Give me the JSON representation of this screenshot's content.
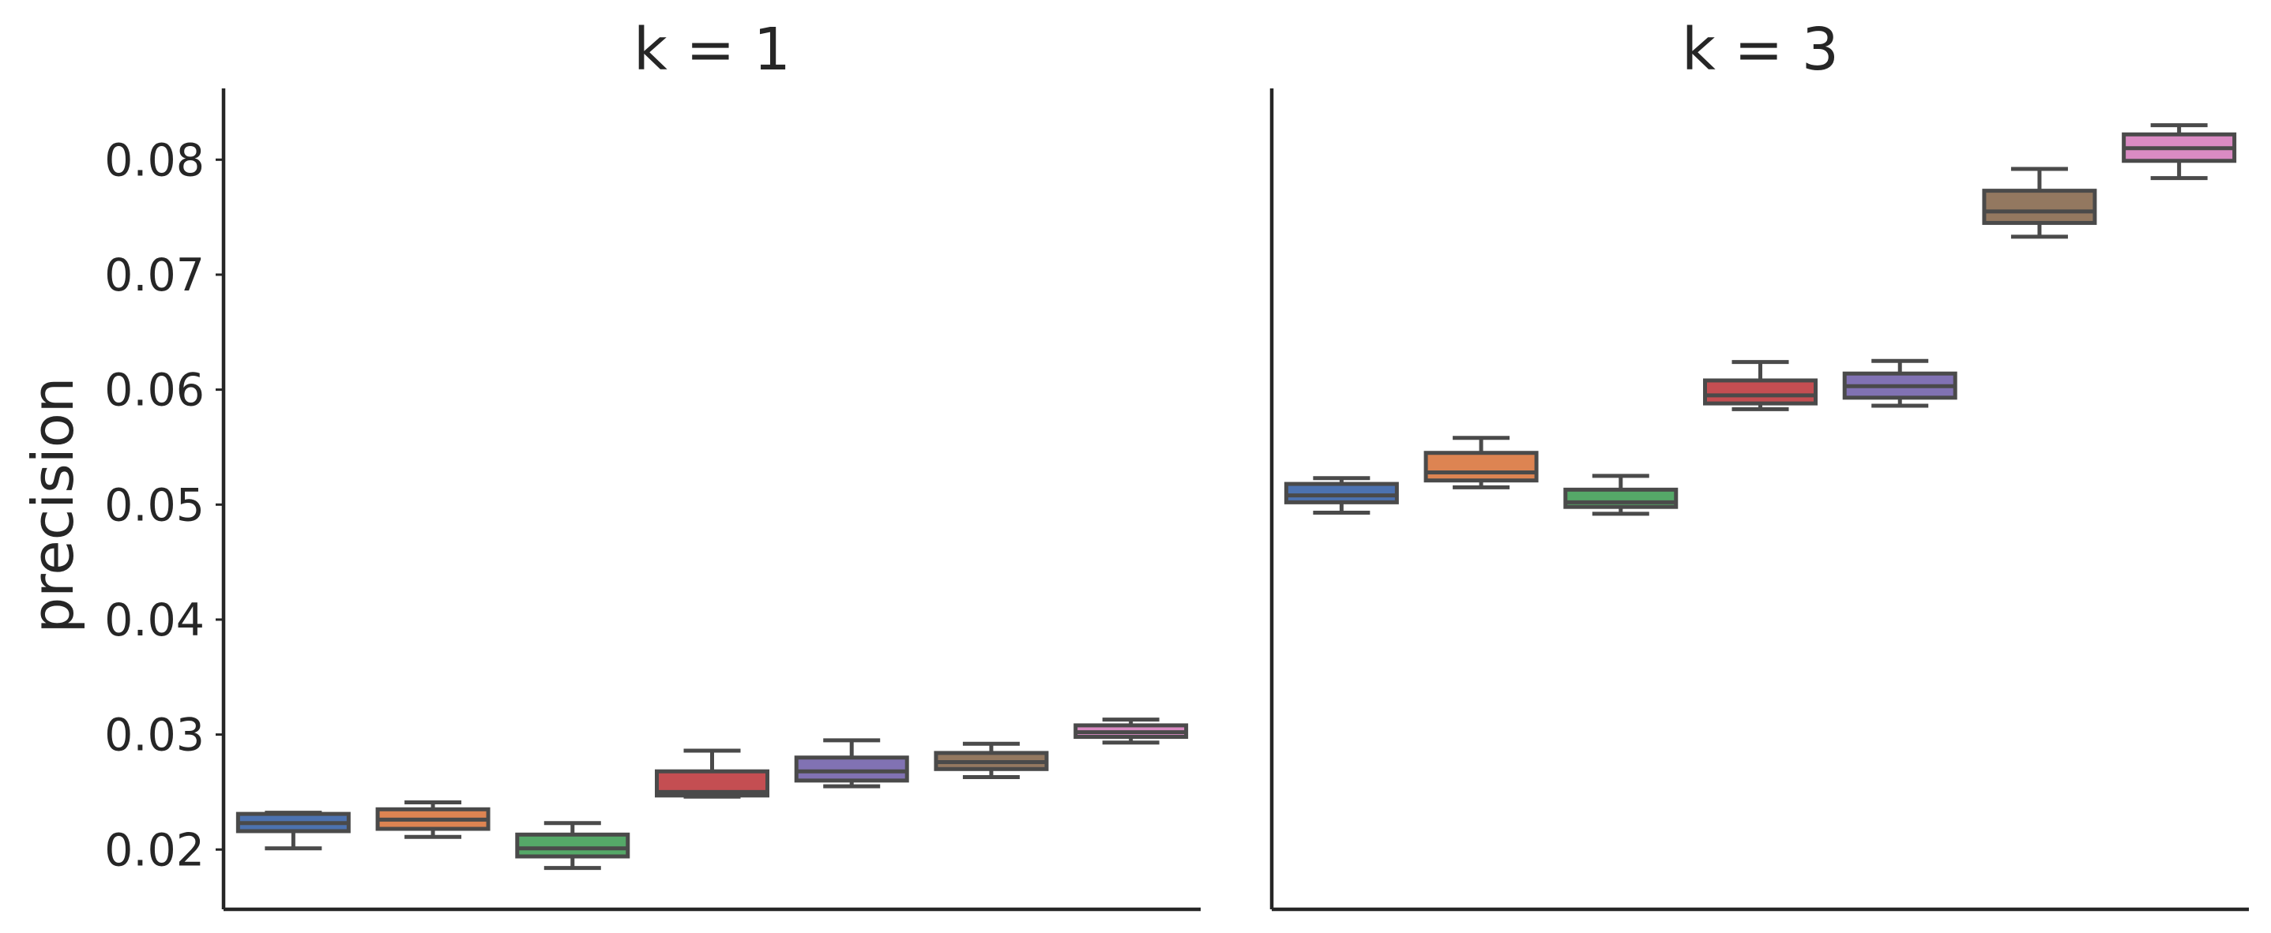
{
  "chart_data": {
    "type": "box",
    "ylabel": "precision",
    "ylim": [
      0.0148,
      0.0862
    ],
    "yticks": [
      0.02,
      0.03,
      0.04,
      0.05,
      0.06,
      0.07,
      0.08
    ],
    "ytick_labels": [
      "0.02",
      "0.03",
      "0.04",
      "0.05",
      "0.06",
      "0.07",
      "0.08"
    ],
    "grid": false,
    "colors": [
      "#4c72b0",
      "#dd8452",
      "#55a868",
      "#c44e52",
      "#8172b3",
      "#937860",
      "#da8bc3"
    ],
    "panels": [
      {
        "title": "k = 1",
        "boxes": [
          {
            "whislo": 0.0201,
            "q1": 0.0216,
            "med": 0.0223,
            "q3": 0.0231,
            "whishi": 0.0232
          },
          {
            "whislo": 0.0211,
            "q1": 0.0218,
            "med": 0.0226,
            "q3": 0.0235,
            "whishi": 0.0241
          },
          {
            "whislo": 0.0184,
            "q1": 0.0194,
            "med": 0.0201,
            "q3": 0.0213,
            "whishi": 0.0223
          },
          {
            "whislo": 0.0246,
            "q1": 0.0247,
            "med": 0.025,
            "q3": 0.0268,
            "whishi": 0.0286
          },
          {
            "whislo": 0.0255,
            "q1": 0.026,
            "med": 0.0268,
            "q3": 0.028,
            "whishi": 0.0295
          },
          {
            "whislo": 0.0263,
            "q1": 0.027,
            "med": 0.0276,
            "q3": 0.0284,
            "whishi": 0.0292
          },
          {
            "whislo": 0.0293,
            "q1": 0.0298,
            "med": 0.0302,
            "q3": 0.0308,
            "whishi": 0.0313
          }
        ]
      },
      {
        "title": "k = 3",
        "boxes": [
          {
            "whislo": 0.0493,
            "q1": 0.0502,
            "med": 0.0508,
            "q3": 0.0518,
            "whishi": 0.0523
          },
          {
            "whislo": 0.0515,
            "q1": 0.0521,
            "med": 0.0528,
            "q3": 0.0545,
            "whishi": 0.0558
          },
          {
            "whislo": 0.0492,
            "q1": 0.0498,
            "med": 0.0502,
            "q3": 0.0513,
            "whishi": 0.0525
          },
          {
            "whislo": 0.0583,
            "q1": 0.0588,
            "med": 0.0595,
            "q3": 0.0608,
            "whishi": 0.0624
          },
          {
            "whislo": 0.0586,
            "q1": 0.0593,
            "med": 0.0603,
            "q3": 0.0614,
            "whishi": 0.0625
          },
          {
            "whislo": 0.0733,
            "q1": 0.0745,
            "med": 0.0755,
            "q3": 0.0773,
            "whishi": 0.0792
          },
          {
            "whislo": 0.0784,
            "q1": 0.0799,
            "med": 0.081,
            "q3": 0.0822,
            "whishi": 0.083
          }
        ]
      }
    ]
  }
}
